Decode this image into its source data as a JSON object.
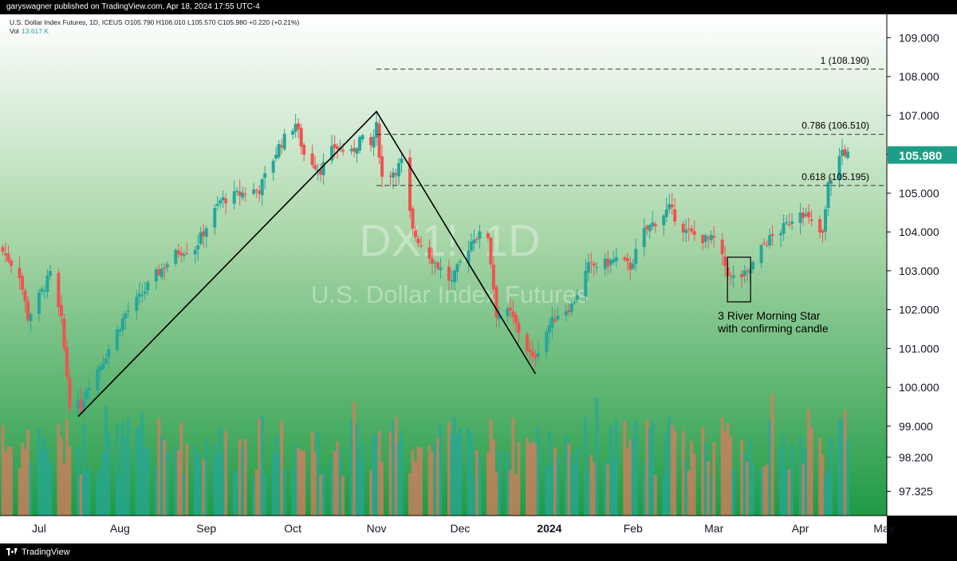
{
  "header": {
    "published": "garyswagner published on TradingView.com, Apr 18, 2024 17:55 UTC-4"
  },
  "footer": {
    "brand": "TradingView",
    "logo_icon": "tradingview-logo-icon"
  },
  "colors": {
    "up": "#26a69a",
    "down": "#ef5350",
    "price_badge": "#1e9e86",
    "bg_top": "#ffffff",
    "bg_bottom": "#1f9a45",
    "axis_bg": "#ffffff"
  },
  "chart_data": {
    "type": "candlestick",
    "legend": {
      "line1": "U.S. Dollar Index Futures, 1D, ICEUS  O105.790  H106.010  L105.570  C105.980  +0.220 (+0.21%)",
      "vol_label": "Vol",
      "vol_value": "13.617 K"
    },
    "watermark": {
      "symbol": "DX1!, 1D",
      "name": "U.S. Dollar Index Futures"
    },
    "y_axis": {
      "ticks": [
        {
          "v": 109.0,
          "label": "109.000"
        },
        {
          "v": 108.0,
          "label": "108.000"
        },
        {
          "v": 107.0,
          "label": "107.000"
        },
        {
          "v": 106.0,
          "label": "106.000"
        },
        {
          "v": 105.0,
          "label": "105.000"
        },
        {
          "v": 104.0,
          "label": "104.000"
        },
        {
          "v": 103.0,
          "label": "103.000"
        },
        {
          "v": 102.0,
          "label": "102.000"
        },
        {
          "v": 101.0,
          "label": "101.000"
        },
        {
          "v": 100.0,
          "label": "100.000"
        },
        {
          "v": 99.0,
          "label": "99.000"
        },
        {
          "v": 98.2,
          "label": "98.200"
        },
        {
          "v": 97.325,
          "label": "97.325"
        }
      ],
      "range": [
        96.7,
        109.6
      ],
      "last_price": 105.98,
      "last_price_label": "105.980"
    },
    "x_axis": {
      "ticks": [
        {
          "date": "2023-07-03",
          "label": "Jul",
          "bold": false
        },
        {
          "date": "2023-08-01",
          "label": "Aug",
          "bold": false
        },
        {
          "date": "2023-09-01",
          "label": "Sep",
          "bold": false
        },
        {
          "date": "2023-10-02",
          "label": "Oct",
          "bold": false
        },
        {
          "date": "2023-11-01",
          "label": "Nov",
          "bold": false
        },
        {
          "date": "2023-12-01",
          "label": "Dec",
          "bold": false
        },
        {
          "date": "2024-01-02",
          "label": "2024",
          "bold": true
        },
        {
          "date": "2024-02-01",
          "label": "Feb",
          "bold": false
        },
        {
          "date": "2024-03-01",
          "label": "Mar",
          "bold": false
        },
        {
          "date": "2024-04-01",
          "label": "Apr",
          "bold": false
        },
        {
          "date": "2024-05-01",
          "label": "May",
          "bold": false
        }
      ],
      "range": [
        "2023-06-19",
        "2024-05-02"
      ]
    },
    "fib_levels": [
      {
        "level": 108.19,
        "label": "1 (108.190)",
        "from": "2023-11-01"
      },
      {
        "level": 106.51,
        "label": "0.786 (106.510)",
        "from": "2023-11-01"
      },
      {
        "level": 105.195,
        "label": "0.618 (105.195)",
        "from": "2023-11-01"
      }
    ],
    "trendlines": [
      {
        "points": [
          {
            "date": "2023-07-17",
            "price": 99.25
          },
          {
            "date": "2023-11-01",
            "price": 107.1
          },
          {
            "date": "2023-12-28",
            "price": 100.35
          }
        ]
      }
    ],
    "annotation": {
      "text_line1": "3 River Morning Star",
      "text_line2": "with confirming candle",
      "box": {
        "from": "2024-03-07",
        "to": "2024-03-13",
        "top": 103.35,
        "bottom": 102.2
      }
    },
    "candle_anchors": [
      [
        "2023-06-20",
        103.5
      ],
      [
        "2023-06-26",
        102.9
      ],
      [
        "2023-06-29",
        101.8
      ],
      [
        "2023-07-05",
        102.6
      ],
      [
        "2023-07-07",
        102.9
      ],
      [
        "2023-07-11",
        101.7
      ],
      [
        "2023-07-14",
        99.6
      ],
      [
        "2023-07-18",
        99.5
      ],
      [
        "2023-07-20",
        100.0
      ],
      [
        "2023-07-26",
        100.7
      ],
      [
        "2023-08-03",
        101.9
      ],
      [
        "2023-08-08",
        102.3
      ],
      [
        "2023-08-14",
        102.9
      ],
      [
        "2023-08-22",
        103.5
      ],
      [
        "2023-08-28",
        103.6
      ],
      [
        "2023-09-06",
        104.8
      ],
      [
        "2023-09-14",
        105.0
      ],
      [
        "2023-09-20",
        105.1
      ],
      [
        "2023-09-27",
        106.2
      ],
      [
        "2023-10-03",
        106.8
      ],
      [
        "2023-10-06",
        106.0
      ],
      [
        "2023-10-12",
        105.6
      ],
      [
        "2023-10-17",
        106.2
      ],
      [
        "2023-10-23",
        106.0
      ],
      [
        "2023-10-26",
        106.4
      ],
      [
        "2023-10-30",
        106.2
      ],
      [
        "2023-11-01",
        106.7
      ],
      [
        "2023-11-03",
        105.4
      ],
      [
        "2023-11-08",
        105.6
      ],
      [
        "2023-11-10",
        105.8
      ],
      [
        "2023-11-14",
        104.0
      ],
      [
        "2023-11-21",
        103.3
      ],
      [
        "2023-11-28",
        102.7
      ],
      [
        "2023-12-01",
        103.2
      ],
      [
        "2023-12-06",
        103.9
      ],
      [
        "2023-12-11",
        103.9
      ],
      [
        "2023-12-14",
        101.9
      ],
      [
        "2023-12-19",
        101.9
      ],
      [
        "2023-12-27",
        100.7
      ],
      [
        "2024-01-02",
        101.6
      ],
      [
        "2024-01-05",
        101.9
      ],
      [
        "2024-01-10",
        102.1
      ],
      [
        "2024-01-16",
        103.1
      ],
      [
        "2024-01-23",
        103.2
      ],
      [
        "2024-01-26",
        103.3
      ],
      [
        "2024-01-31",
        103.1
      ],
      [
        "2024-02-05",
        104.0
      ],
      [
        "2024-02-14",
        104.6
      ],
      [
        "2024-02-20",
        104.0
      ],
      [
        "2024-02-27",
        103.8
      ],
      [
        "2024-03-01",
        103.8
      ],
      [
        "2024-03-07",
        102.8
      ],
      [
        "2024-03-13",
        102.9
      ],
      [
        "2024-03-19",
        103.7
      ],
      [
        "2024-03-26",
        104.1
      ],
      [
        "2024-04-01",
        104.6
      ],
      [
        "2024-04-05",
        104.2
      ],
      [
        "2024-04-09",
        103.9
      ],
      [
        "2024-04-11",
        105.2
      ],
      [
        "2024-04-16",
        106.1
      ],
      [
        "2024-04-18",
        105.98
      ]
    ]
  }
}
